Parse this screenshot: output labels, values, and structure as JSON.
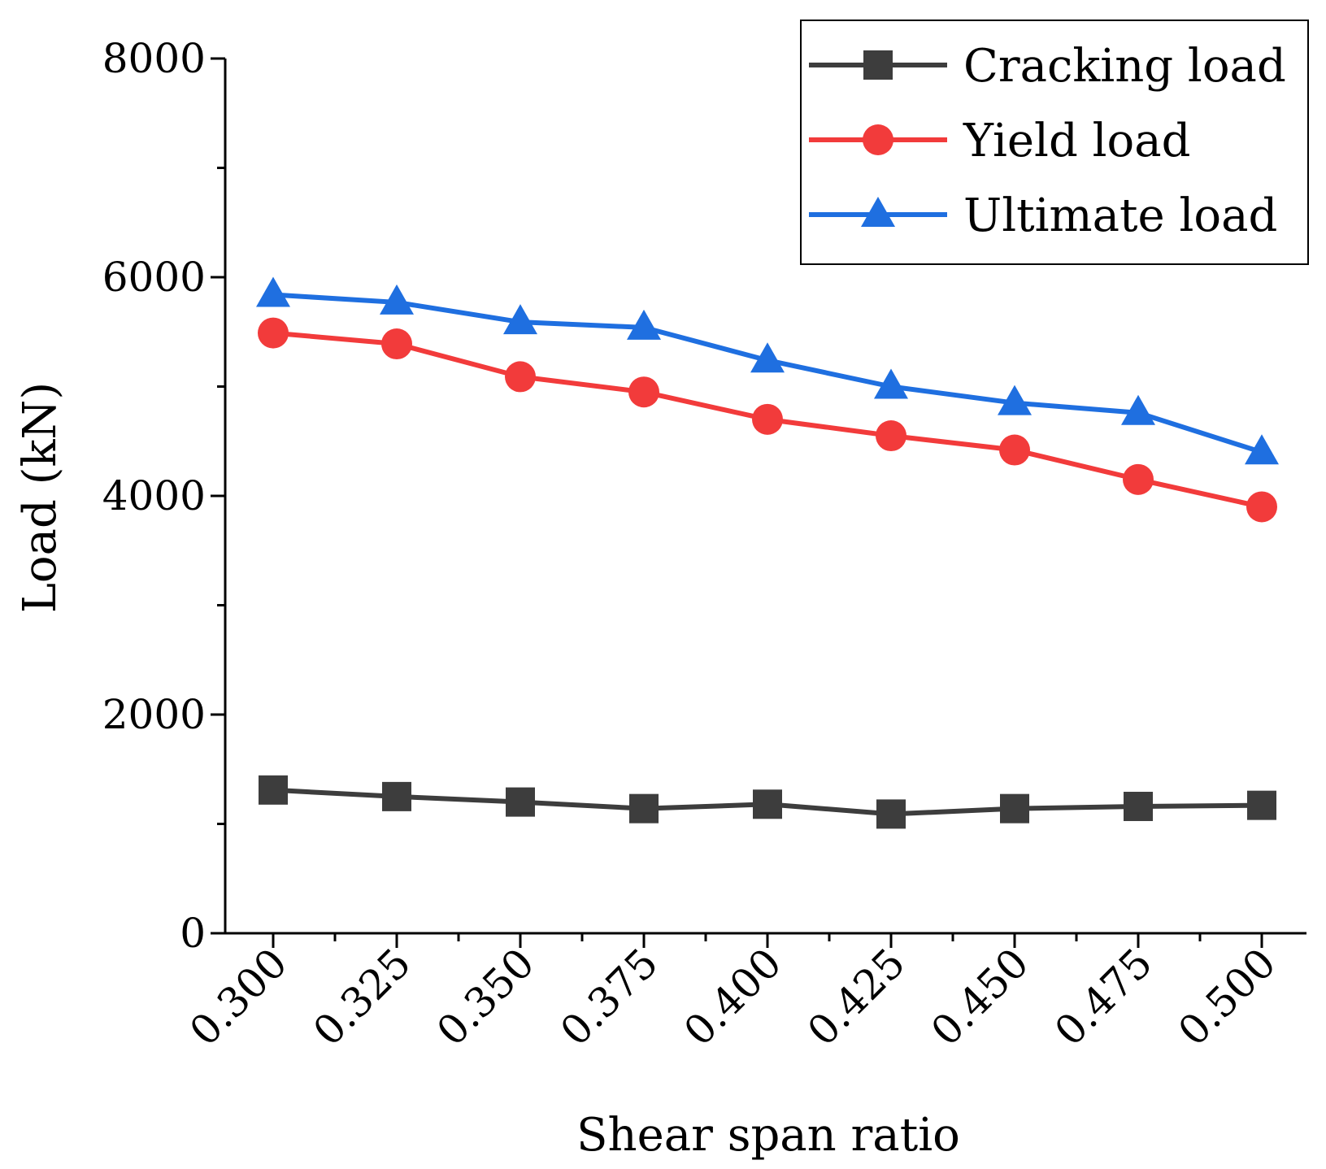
{
  "chart_data": {
    "type": "line",
    "title": "",
    "xlabel": "Shear span ratio",
    "ylabel": "Load (kN)",
    "categories": [
      "0.300",
      "0.325",
      "0.350",
      "0.375",
      "0.400",
      "0.425",
      "0.450",
      "0.475",
      "0.500"
    ],
    "ylim": [
      0,
      8000
    ],
    "yticks": [
      "0",
      "2000",
      "4000",
      "6000",
      "8000"
    ],
    "grid": false,
    "legend_position": "top-right",
    "series": [
      {
        "name": "Cracking load",
        "color": "#3d3d3d",
        "marker": "square",
        "values": [
          1310,
          1250,
          1200,
          1140,
          1180,
          1090,
          1140,
          1160,
          1170
        ]
      },
      {
        "name": "Yield load",
        "color": "#f23b3b",
        "marker": "circle",
        "values": [
          5490,
          5390,
          5090,
          4950,
          4700,
          4550,
          4420,
          4150,
          3900
        ]
      },
      {
        "name": "Ultimate load",
        "color": "#1f6fe0",
        "marker": "triangle",
        "values": [
          5840,
          5770,
          5590,
          5540,
          5240,
          5000,
          4850,
          4760,
          4400
        ]
      }
    ]
  }
}
